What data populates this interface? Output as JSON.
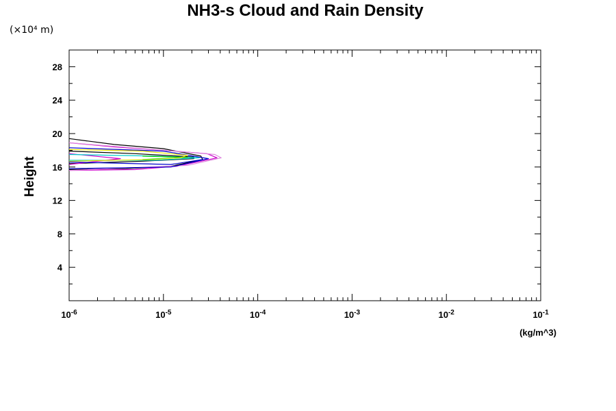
{
  "chart_data": {
    "type": "line",
    "title": "NH3-s Cloud and Rain Density",
    "y_unit_label": "(×10⁴ m)",
    "ylabel": "Height",
    "xlabel": "(kg/m^3)",
    "x_scale": "log",
    "xlim": [
      1e-06,
      0.1
    ],
    "ylim": [
      0,
      30
    ],
    "grid": false,
    "y_ticks": [
      "4",
      "8",
      "12",
      "16",
      "20",
      "24",
      "28"
    ],
    "y_tick_values": [
      4,
      8,
      12,
      16,
      20,
      24,
      28
    ],
    "x_ticks": [
      {
        "base": "10",
        "exp": "-6",
        "value": 1e-06
      },
      {
        "base": "10",
        "exp": "-5",
        "value": 1e-05
      },
      {
        "base": "10",
        "exp": "-4",
        "value": 0.0001
      },
      {
        "base": "10",
        "exp": "-3",
        "value": 0.001
      },
      {
        "base": "10",
        "exp": "-2",
        "value": 0.01
      },
      {
        "base": "10",
        "exp": "-1",
        "value": 0.1
      }
    ],
    "series": [
      {
        "color": "#000000",
        "points": [
          [
            1e-06,
            19.4
          ],
          [
            3e-06,
            18.7
          ],
          [
            1e-05,
            18.2
          ],
          [
            2.5e-05,
            17.3
          ],
          [
            2.6e-05,
            16.9
          ],
          [
            1.2e-05,
            16.1
          ],
          [
            4e-06,
            15.8
          ],
          [
            1e-06,
            15.7
          ]
        ]
      },
      {
        "color": "#000000",
        "points": [
          [
            1e-06,
            17.9
          ],
          [
            5e-06,
            17.6
          ],
          [
            2.1e-05,
            17.2
          ],
          [
            2.1e-05,
            17.0
          ],
          [
            6e-06,
            16.7
          ],
          [
            1e-06,
            16.4
          ]
        ]
      },
      {
        "color": "#cc00cc",
        "points": [
          [
            1e-06,
            18.9
          ],
          [
            3e-06,
            18.4
          ],
          [
            1e-05,
            18.0
          ],
          [
            2.9e-05,
            17.6
          ],
          [
            3.7e-05,
            17.1
          ],
          [
            1.4e-05,
            16.1
          ],
          [
            5e-06,
            15.7
          ],
          [
            1e-06,
            15.6
          ]
        ]
      },
      {
        "color": "#cc00cc",
        "points": [
          [
            1e-06,
            17.6
          ],
          [
            3.5e-06,
            17.0
          ],
          [
            1e-06,
            16.3
          ]
        ]
      },
      {
        "color": "#dd88dd",
        "points": [
          [
            1e-06,
            18.9
          ],
          [
            1e-05,
            18.0
          ],
          [
            3.5e-05,
            17.5
          ],
          [
            4.1e-05,
            17.1
          ],
          [
            1.8e-05,
            16.2
          ],
          [
            1e-06,
            15.6
          ]
        ]
      },
      {
        "color": "#0000cc",
        "points": [
          [
            1e-06,
            18.3
          ],
          [
            1e-05,
            17.9
          ],
          [
            3e-05,
            17.0
          ],
          [
            1.2e-05,
            16.0
          ],
          [
            1e-06,
            15.8
          ]
        ]
      },
      {
        "color": "#0000cc",
        "points": [
          [
            1e-06,
            16.6
          ],
          [
            1.2e-05,
            16.3
          ],
          [
            2.6e-05,
            16.9
          ]
        ]
      },
      {
        "color": "#00cccc",
        "points": [
          [
            1e-06,
            17.5
          ],
          [
            8e-06,
            17.3
          ],
          [
            2.4e-05,
            17.1
          ],
          [
            8e-06,
            16.8
          ],
          [
            1e-06,
            16.8
          ]
        ]
      },
      {
        "color": "#00cc00",
        "points": [
          [
            6e-06,
            17.3
          ],
          [
            1.8e-05,
            17.15
          ],
          [
            6e-06,
            16.9
          ]
        ]
      },
      {
        "color": "#e6e600",
        "points": [
          [
            1e-06,
            18.1
          ],
          [
            6e-06,
            17.9
          ],
          [
            1.8e-05,
            17.4
          ],
          [
            1.5e-05,
            17.1
          ],
          [
            8e-06,
            16.9
          ],
          [
            1e-06,
            16.7
          ]
        ]
      }
    ]
  }
}
